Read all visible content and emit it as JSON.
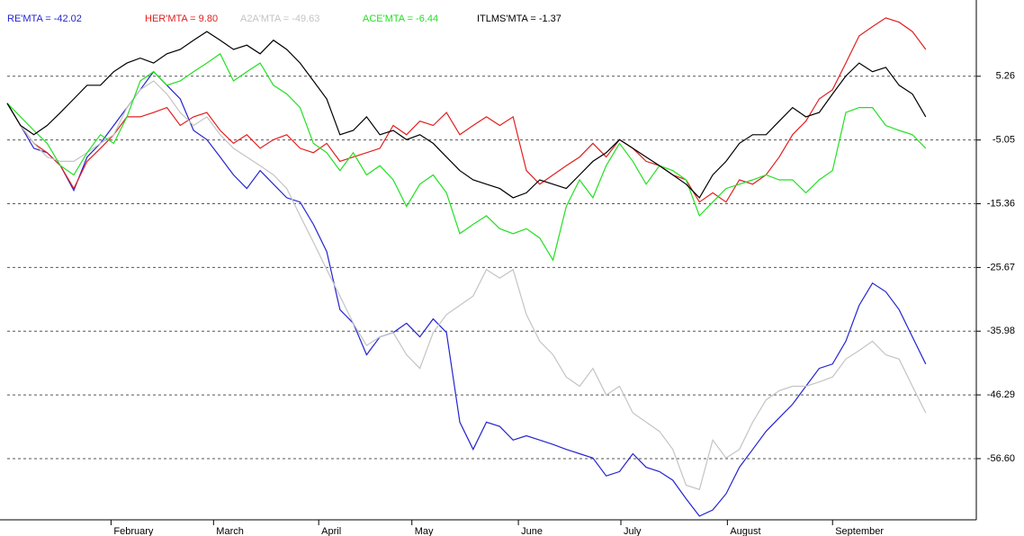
{
  "chart_data": {
    "type": "line",
    "x": [
      0,
      1,
      2,
      3,
      4,
      5,
      6,
      7,
      8,
      9,
      10,
      11,
      12,
      13,
      14,
      15,
      16,
      17,
      18,
      19,
      20,
      21,
      22,
      23,
      24,
      25,
      26,
      27,
      28,
      29,
      30,
      31,
      32,
      33,
      34,
      35,
      36,
      37,
      38,
      39,
      40,
      41,
      42,
      43,
      44,
      45,
      46,
      47,
      48,
      49,
      50,
      51,
      52,
      53,
      54,
      55,
      56,
      57,
      58,
      59,
      60,
      61,
      62,
      63,
      64,
      65,
      66,
      67,
      68,
      69
    ],
    "series": [
      {
        "name": "RE'MTA = -42.02",
        "color": "#2424d0",
        "values": [
          0.9,
          -2.7,
          -6.4,
          -7.1,
          -9.2,
          -13.2,
          -7.8,
          -5.6,
          -2.7,
          0.2,
          3.1,
          6.0,
          3.8,
          1.6,
          -3.5,
          -5.0,
          -7.8,
          -10.7,
          -12.9,
          -10.0,
          -12.2,
          -14.4,
          -15.1,
          -18.7,
          -23.1,
          -32.5,
          -34.7,
          -39.8,
          -36.9,
          -36.2,
          -34.7,
          -36.9,
          -34.0,
          -36.2,
          -50.7,
          -55.1,
          -50.7,
          -51.4,
          -53.6,
          -52.9,
          -53.6,
          -54.3,
          -55.1,
          -55.8,
          -56.5,
          -59.4,
          -58.7,
          -55.8,
          -58.0,
          -58.7,
          -60.1,
          -63.1,
          -65.9,
          -64.9,
          -62.3,
          -58.0,
          -55.1,
          -52.2,
          -50.0,
          -47.8,
          -44.9,
          -42.0,
          -41.3,
          -37.6,
          -31.8,
          -28.2,
          -29.6,
          -32.5,
          -36.9,
          -41.3
        ]
      },
      {
        "name": "HER'MTA = 9.80",
        "color": "#e02020",
        "values": [
          0.9,
          -2.7,
          -5.6,
          -7.1,
          -9.2,
          -12.9,
          -8.5,
          -6.4,
          -4.2,
          -1.3,
          -1.3,
          -0.6,
          0.2,
          -2.7,
          -1.3,
          -0.6,
          -3.5,
          -5.6,
          -4.2,
          -6.4,
          -5.0,
          -4.2,
          -6.4,
          -7.1,
          -5.6,
          -8.5,
          -7.8,
          -7.1,
          -6.4,
          -2.7,
          -4.2,
          -2.0,
          -2.7,
          -0.6,
          -4.2,
          -2.7,
          -1.3,
          -2.7,
          -1.3,
          -10.0,
          -12.2,
          -10.7,
          -9.2,
          -7.8,
          -5.6,
          -7.8,
          -5.0,
          -6.4,
          -8.5,
          -9.2,
          -10.7,
          -11.5,
          -15.1,
          -13.6,
          -15.1,
          -11.5,
          -12.2,
          -10.7,
          -7.8,
          -4.2,
          -2.0,
          1.6,
          3.1,
          7.4,
          11.8,
          13.3,
          14.7,
          14.0,
          12.5,
          9.6
        ]
      },
      {
        "name": "A2A'MTA = -49.63",
        "color": "#c4c4c4",
        "values": [
          0.9,
          -2.7,
          -5.6,
          -7.8,
          -8.5,
          -8.5,
          -7.1,
          -5.6,
          -4.2,
          0.2,
          3.1,
          4.5,
          2.4,
          -0.6,
          -2.7,
          -1.3,
          -4.2,
          -6.4,
          -7.8,
          -9.2,
          -10.7,
          -12.9,
          -17.3,
          -21.6,
          -26.0,
          -30.3,
          -34.7,
          -38.3,
          -36.9,
          -36.2,
          -39.8,
          -42.0,
          -36.2,
          -33.3,
          -31.8,
          -30.3,
          -26.0,
          -27.4,
          -26.0,
          -33.3,
          -37.6,
          -39.8,
          -43.4,
          -44.9,
          -42.0,
          -46.3,
          -44.9,
          -49.2,
          -50.7,
          -52.2,
          -55.1,
          -60.9,
          -61.6,
          -53.6,
          -56.5,
          -55.1,
          -50.7,
          -47.1,
          -45.6,
          -44.9,
          -44.9,
          -44.2,
          -43.4,
          -40.5,
          -39.1,
          -37.6,
          -39.8,
          -40.5,
          -44.9,
          -49.2
        ]
      },
      {
        "name": "ACE'MTA = -6.44",
        "color": "#22e022",
        "values": [
          0.9,
          -1.3,
          -3.5,
          -5.6,
          -9.2,
          -10.7,
          -7.1,
          -4.2,
          -5.6,
          -1.3,
          4.5,
          6.0,
          3.8,
          4.5,
          6.0,
          7.4,
          8.9,
          4.5,
          6.0,
          7.4,
          3.8,
          2.4,
          0.2,
          -5.6,
          -7.1,
          -10.0,
          -7.1,
          -10.7,
          -9.2,
          -11.5,
          -15.8,
          -12.2,
          -10.7,
          -13.6,
          -20.2,
          -18.7,
          -17.3,
          -19.4,
          -20.2,
          -19.4,
          -20.9,
          -24.5,
          -15.8,
          -11.5,
          -14.4,
          -9.2,
          -5.6,
          -8.5,
          -12.2,
          -9.2,
          -10.0,
          -11.5,
          -17.3,
          -15.1,
          -12.9,
          -12.2,
          -11.5,
          -10.7,
          -11.5,
          -11.5,
          -13.6,
          -11.5,
          -10.0,
          -0.6,
          0.2,
          0.2,
          -2.7,
          -3.5,
          -4.2,
          -6.4
        ]
      },
      {
        "name": "ITLMS'MTA = -1.37",
        "color": "#000000",
        "values": [
          0.9,
          -2.7,
          -4.2,
          -2.7,
          -0.6,
          1.6,
          3.8,
          3.8,
          6.0,
          7.4,
          8.2,
          7.4,
          8.9,
          9.6,
          11.1,
          12.5,
          11.1,
          9.6,
          10.3,
          8.9,
          11.1,
          9.6,
          7.4,
          4.5,
          1.6,
          -4.2,
          -3.5,
          -1.3,
          -4.2,
          -3.5,
          -5.0,
          -4.2,
          -5.6,
          -7.8,
          -10.0,
          -11.5,
          -12.2,
          -12.9,
          -14.4,
          -13.6,
          -11.5,
          -12.2,
          -12.9,
          -10.7,
          -8.5,
          -7.1,
          -5.0,
          -6.4,
          -7.8,
          -9.2,
          -10.7,
          -12.2,
          -14.4,
          -10.7,
          -8.5,
          -5.6,
          -4.2,
          -4.2,
          -2.0,
          0.2,
          -1.3,
          -0.6,
          2.4,
          5.3,
          7.4,
          6.0,
          6.7,
          3.8,
          2.4,
          -1.3
        ]
      }
    ],
    "xlim": [
      0,
      72.8
    ],
    "xticks": [
      {
        "value": 7.8,
        "label": "February"
      },
      {
        "value": 15.5,
        "label": "March"
      },
      {
        "value": 23.4,
        "label": "April"
      },
      {
        "value": 30.4,
        "label": "May"
      },
      {
        "value": 38.4,
        "label": "June"
      },
      {
        "value": 46.1,
        "label": "July"
      },
      {
        "value": 54.1,
        "label": "August"
      },
      {
        "value": 62.0,
        "label": "September"
      }
    ],
    "ylim": [
      -66.5,
      17.6
    ],
    "yticks": [
      5.26,
      -5.05,
      -15.36,
      -25.67,
      -35.98,
      -46.29,
      {
        "value": -56.6,
        "label": "-56.60"
      }
    ],
    "grid": true
  }
}
